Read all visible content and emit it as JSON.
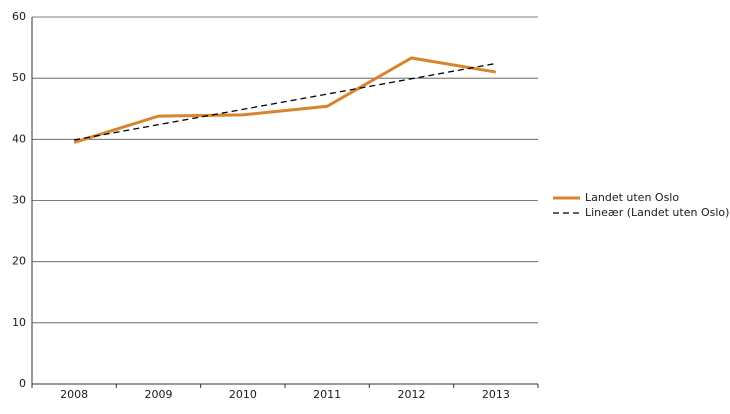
{
  "chart_data": {
    "type": "line",
    "categories": [
      "2008",
      "2009",
      "2010",
      "2011",
      "2012",
      "2013"
    ],
    "series": [
      {
        "name": "Landet uten Oslo",
        "color": "#d6852c",
        "style": "solid",
        "values": [
          39.5,
          43.8,
          44.0,
          45.4,
          53.3,
          51.0
        ]
      },
      {
        "name": "Lineær (Landet uten Oslo)",
        "color": "#000000",
        "style": "dashed",
        "values": [
          39.9,
          42.4,
          44.9,
          47.4,
          49.9,
          52.4
        ]
      }
    ],
    "ylim": [
      0,
      60
    ],
    "yticks": [
      0,
      10,
      20,
      30,
      40,
      50,
      60
    ],
    "grid": true,
    "legend": "right"
  }
}
